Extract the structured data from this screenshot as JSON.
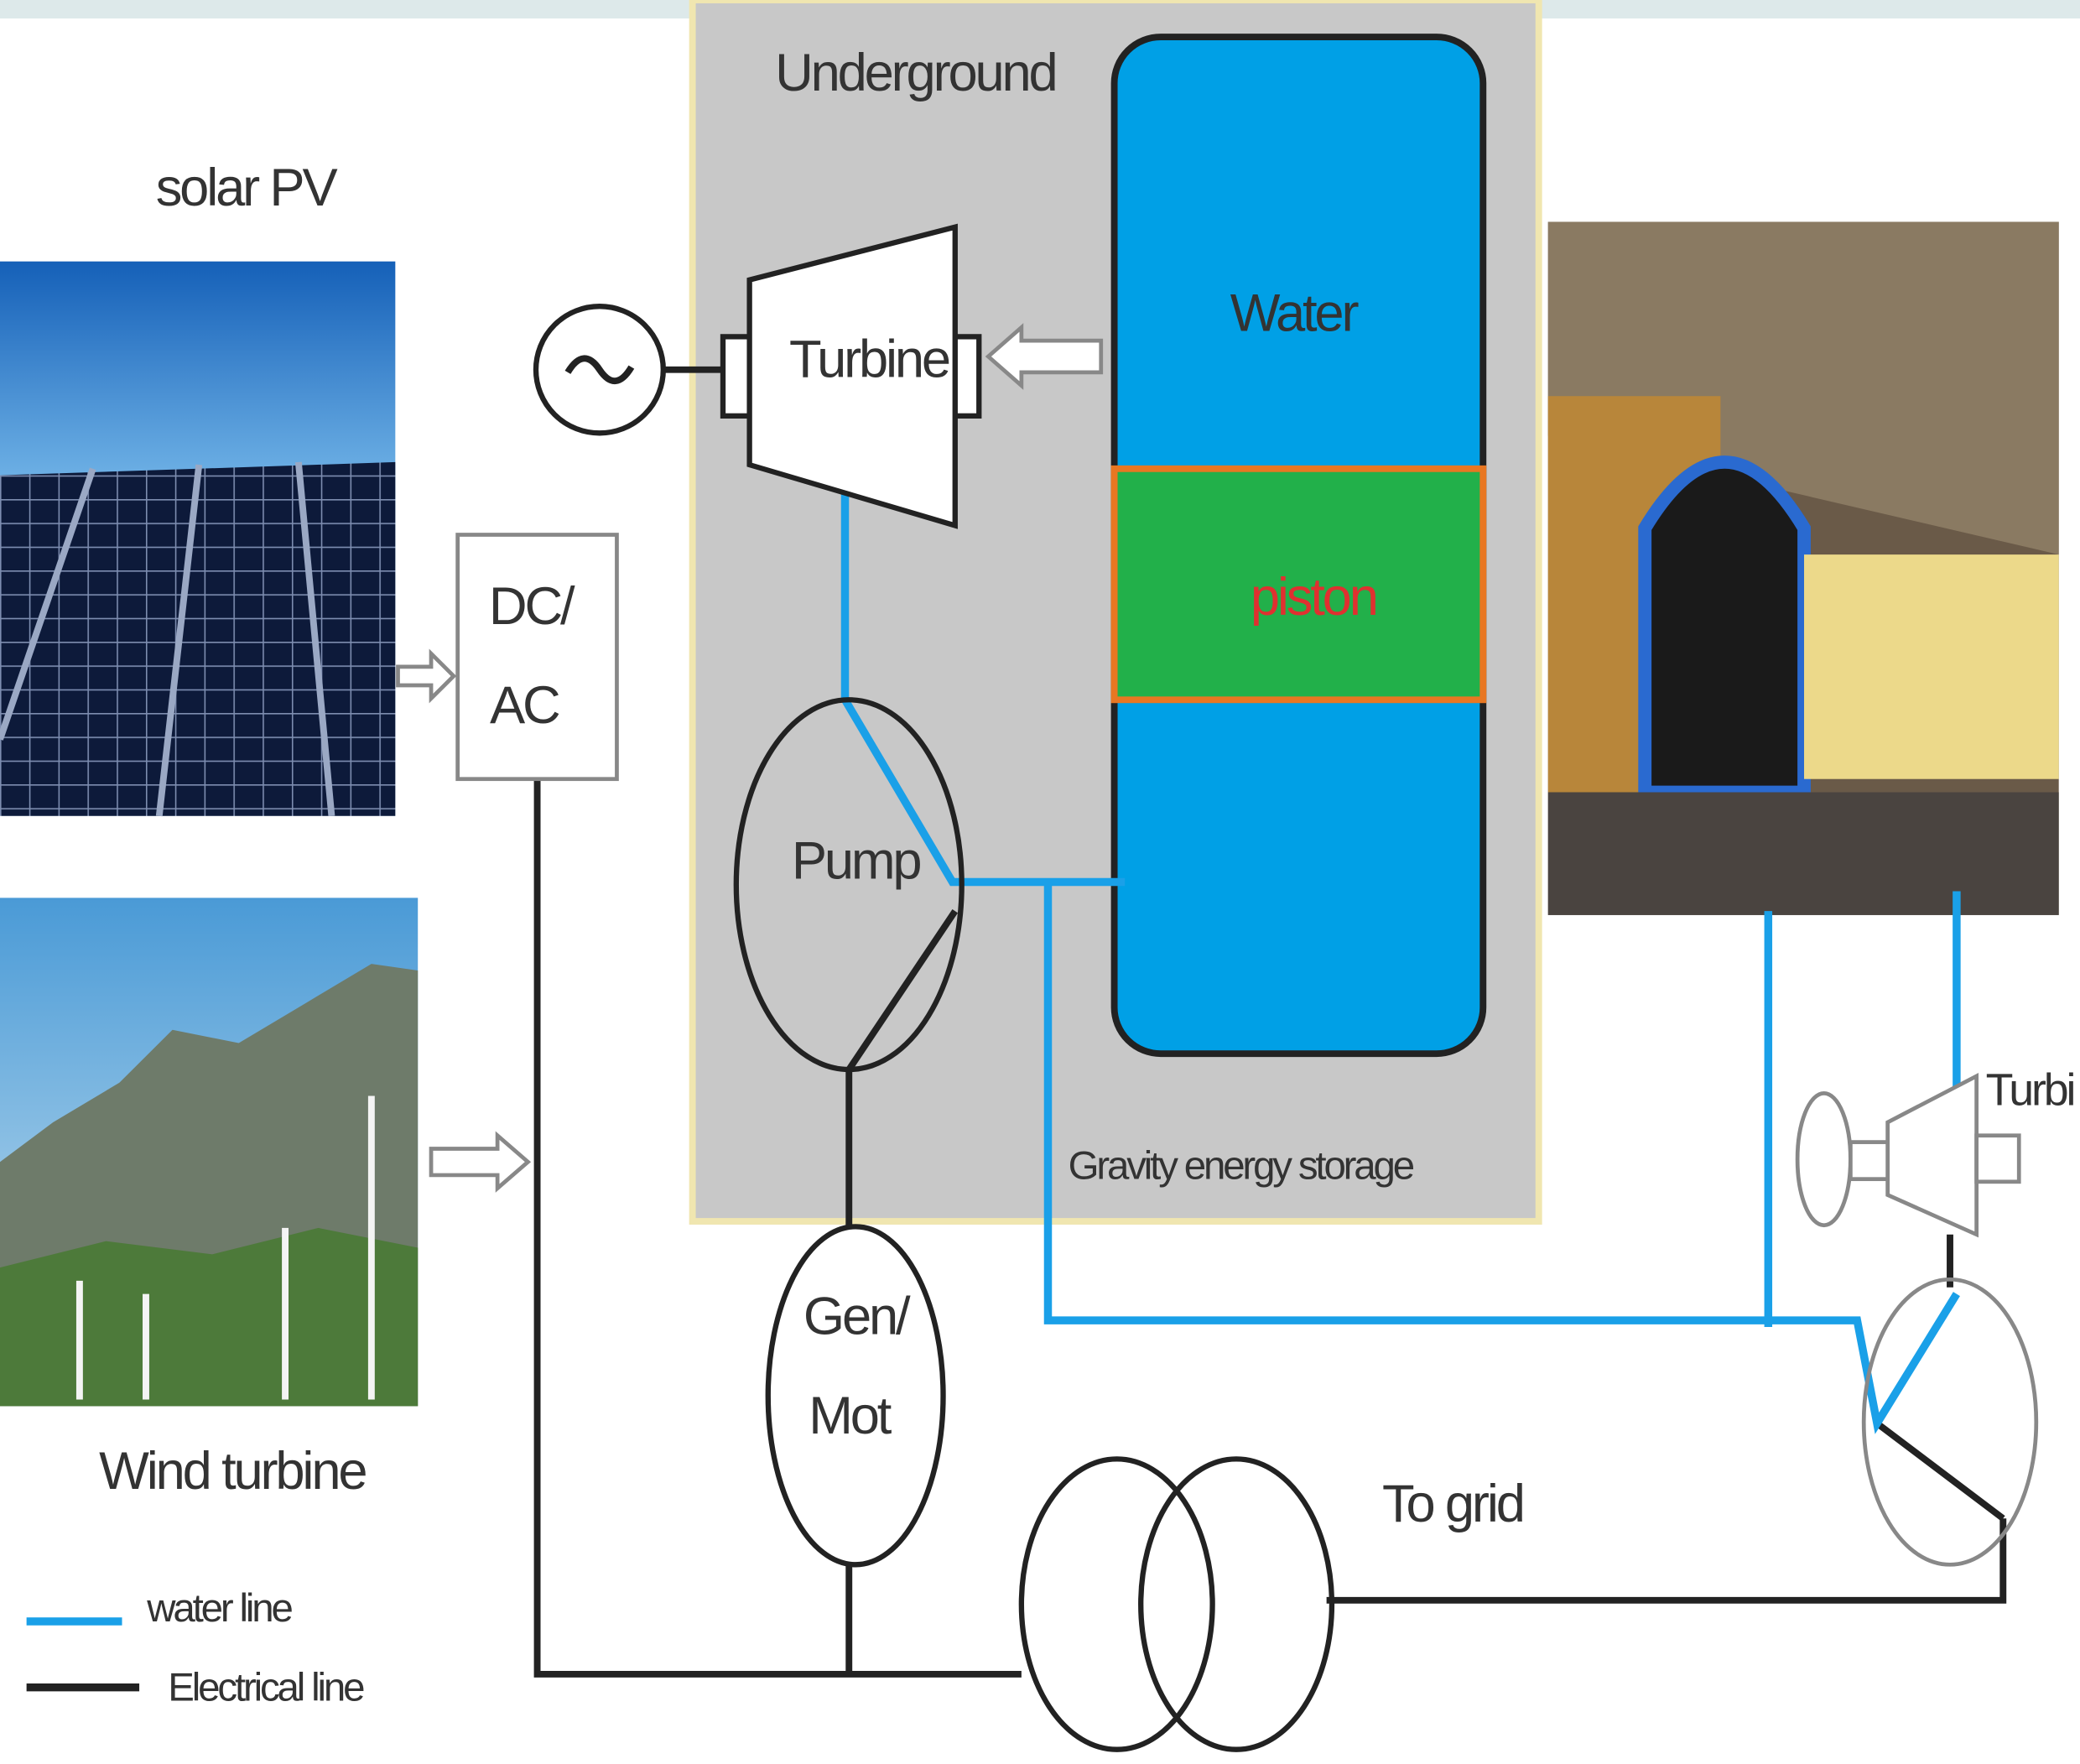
{
  "labels": {
    "underground": "Underground",
    "solar_pv": "solar PV",
    "water": "Water",
    "piston": "piston",
    "turbine": "Turbine",
    "dc_ac": [
      "DC/",
      "AC"
    ],
    "pump": "Pump",
    "gen_mot": [
      "Gen/",
      "Mot"
    ],
    "gravity_storage": "Gravity energy storage",
    "wind_turbine": "Wind turbine",
    "to_grid": "To grid",
    "turbine_right": "Turbi"
  },
  "legend": {
    "water_line": "water line",
    "electrical_line": "Electrical line"
  }
}
